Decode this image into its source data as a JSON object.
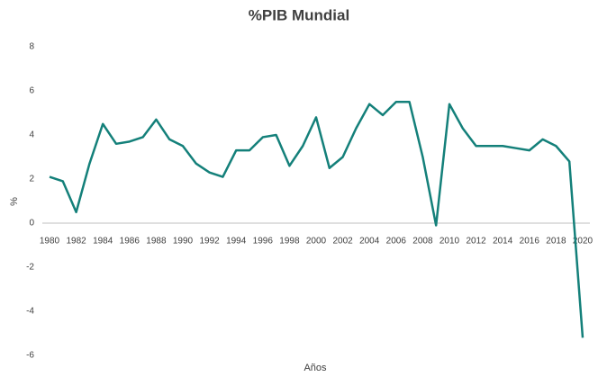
{
  "chart_data": {
    "type": "line",
    "title": "%PIB Mundial",
    "x_label": "Años",
    "y_label": "%",
    "x": [
      1980,
      1981,
      1982,
      1983,
      1984,
      1985,
      1986,
      1987,
      1988,
      1989,
      1990,
      1991,
      1992,
      1993,
      1994,
      1995,
      1996,
      1997,
      1998,
      1999,
      2000,
      2001,
      2002,
      2003,
      2004,
      2005,
      2006,
      2007,
      2008,
      2009,
      2010,
      2011,
      2012,
      2013,
      2014,
      2015,
      2016,
      2017,
      2018,
      2019,
      2020
    ],
    "series": [
      {
        "name": "%PIB Mundial",
        "color": "#14807a",
        "values": [
          2.1,
          1.9,
          0.5,
          2.7,
          4.5,
          3.6,
          3.7,
          3.9,
          4.7,
          3.8,
          3.5,
          2.7,
          2.3,
          2.1,
          3.3,
          3.3,
          3.9,
          4.0,
          2.6,
          3.5,
          4.8,
          2.5,
          3.0,
          4.3,
          5.4,
          4.9,
          5.5,
          5.5,
          3.0,
          -0.1,
          5.4,
          4.3,
          3.5,
          3.5,
          3.5,
          3.4,
          3.3,
          3.8,
          3.5,
          2.8,
          -5.2
        ]
      }
    ],
    "xlim": [
      1980,
      2020
    ],
    "xticks": [
      1980,
      1982,
      1984,
      1986,
      1988,
      1990,
      1992,
      1994,
      1996,
      1998,
      2000,
      2002,
      2004,
      2006,
      2008,
      2010,
      2012,
      2014,
      2016,
      2018,
      2020
    ],
    "ylim": [
      -6,
      8
    ],
    "yticks": [
      -6,
      -4,
      -2,
      0,
      2,
      4,
      6,
      8
    ],
    "grid": false
  }
}
